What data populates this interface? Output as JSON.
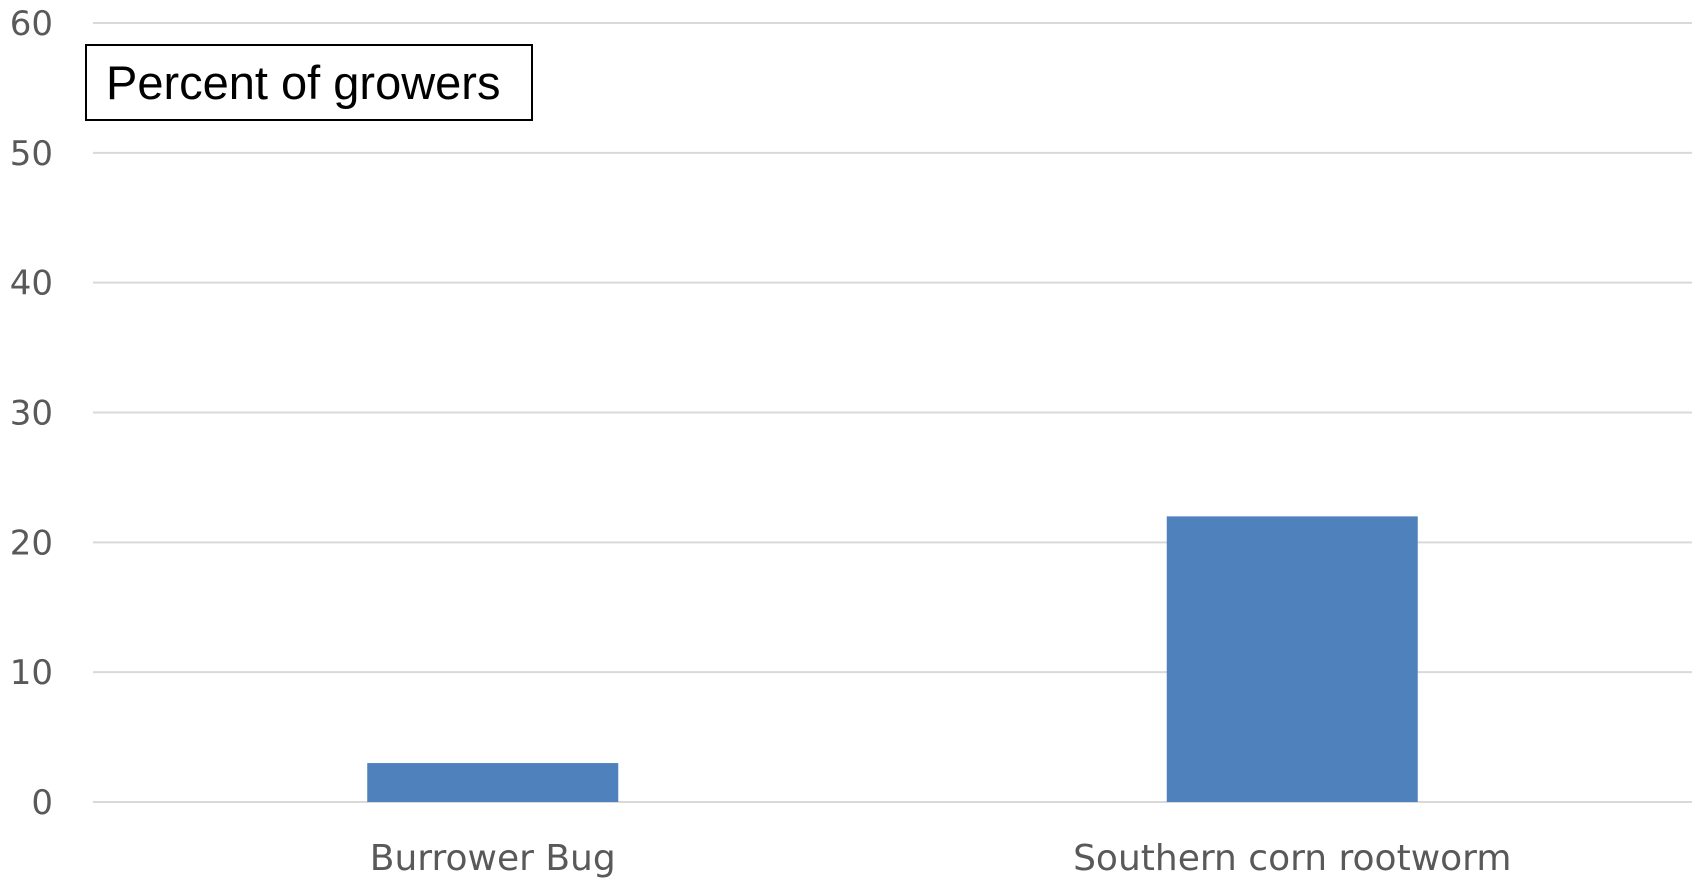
{
  "chart_data": {
    "type": "bar",
    "title": "Percent of growers",
    "categories": [
      "Burrower Bug",
      "Southern corn rootworm"
    ],
    "values": [
      3,
      22
    ],
    "ylim": [
      0,
      60
    ],
    "yticks": [
      0,
      10,
      20,
      30,
      40,
      50,
      60
    ],
    "xlabel": "",
    "ylabel": "",
    "grid": true,
    "legend": false,
    "colors": {
      "bar": "#4f81bd",
      "grid": "#d9d9d9",
      "axis_text": "#595959"
    }
  }
}
